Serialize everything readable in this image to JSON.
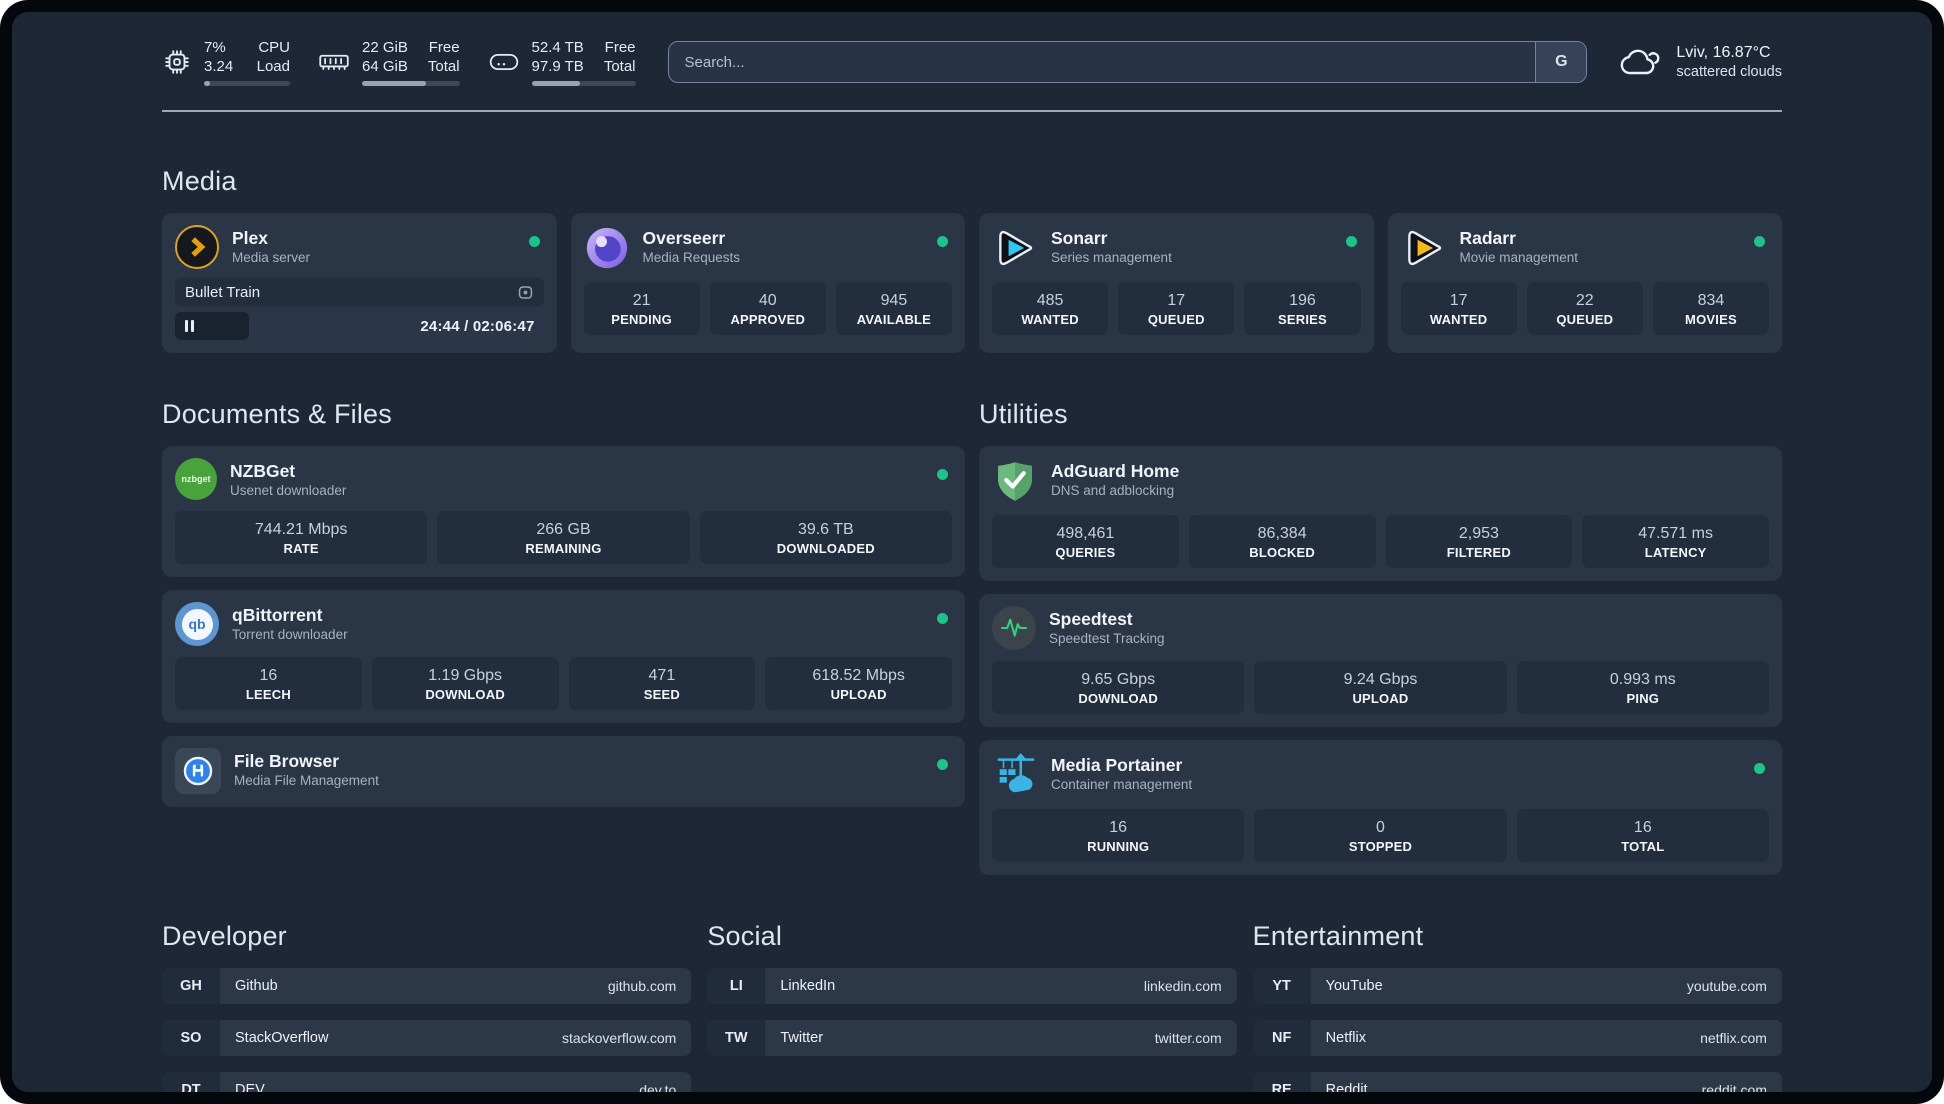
{
  "system": {
    "cpu": {
      "value_top": "7%",
      "value_bottom": "3.24",
      "label_top": "CPU",
      "label_bottom": "Load",
      "progress_pct": 7
    },
    "memory": {
      "value_top": "22 GiB",
      "value_bottom": "64 GiB",
      "label_top": "Free",
      "label_bottom": "Total",
      "progress_pct": 66
    },
    "storage": {
      "value_top": "52.4 TB",
      "value_bottom": "97.9 TB",
      "label_top": "Free",
      "label_bottom": "Total",
      "progress_pct": 47
    }
  },
  "search": {
    "placeholder": "Search...",
    "engine_label": "G"
  },
  "weather": {
    "location_temp": "Lviv, 16.87°C",
    "condition": "scattered clouds"
  },
  "media": {
    "heading": "Media",
    "plex": {
      "title": "Plex",
      "subtitle": "Media server",
      "now_playing": "Bullet Train",
      "time": "24:44 / 02:06:47",
      "progress_pct": 20
    },
    "overseerr": {
      "title": "Overseerr",
      "subtitle": "Media Requests",
      "stats": [
        {
          "value": "21",
          "label": "PENDING"
        },
        {
          "value": "40",
          "label": "APPROVED"
        },
        {
          "value": "945",
          "label": "AVAILABLE"
        }
      ]
    },
    "sonarr": {
      "title": "Sonarr",
      "subtitle": "Series management",
      "stats": [
        {
          "value": "485",
          "label": "WANTED"
        },
        {
          "value": "17",
          "label": "QUEUED"
        },
        {
          "value": "196",
          "label": "SERIES"
        }
      ]
    },
    "radarr": {
      "title": "Radarr",
      "subtitle": "Movie management",
      "stats": [
        {
          "value": "17",
          "label": "WANTED"
        },
        {
          "value": "22",
          "label": "QUEUED"
        },
        {
          "value": "834",
          "label": "MOVIES"
        }
      ]
    }
  },
  "documents": {
    "heading": "Documents & Files",
    "nzbget": {
      "title": "NZBGet",
      "subtitle": "Usenet downloader",
      "icon_text": "nzbget",
      "stats": [
        {
          "value": "744.21 Mbps",
          "label": "RATE"
        },
        {
          "value": "266 GB",
          "label": "REMAINING"
        },
        {
          "value": "39.6 TB",
          "label": "DOWNLOADED"
        }
      ]
    },
    "qbittorrent": {
      "title": "qBittorrent",
      "subtitle": "Torrent downloader",
      "icon_text": "qb",
      "stats": [
        {
          "value": "16",
          "label": "LEECH"
        },
        {
          "value": "1.19 Gbps",
          "label": "DOWNLOAD"
        },
        {
          "value": "471",
          "label": "SEED"
        },
        {
          "value": "618.52 Mbps",
          "label": "UPLOAD"
        }
      ]
    },
    "filebrowser": {
      "title": "File Browser",
      "subtitle": "Media File Management"
    }
  },
  "utilities": {
    "heading": "Utilities",
    "adguard": {
      "title": "AdGuard Home",
      "subtitle": "DNS and adblocking",
      "stats": [
        {
          "value": "498,461",
          "label": "QUERIES"
        },
        {
          "value": "86,384",
          "label": "BLOCKED"
        },
        {
          "value": "2,953",
          "label": "FILTERED"
        },
        {
          "value": "47.571 ms",
          "label": "LATENCY"
        }
      ]
    },
    "speedtest": {
      "title": "Speedtest",
      "subtitle": "Speedtest Tracking",
      "stats": [
        {
          "value": "9.65 Gbps",
          "label": "DOWNLOAD"
        },
        {
          "value": "9.24 Gbps",
          "label": "UPLOAD"
        },
        {
          "value": "0.993 ms",
          "label": "PING"
        }
      ]
    },
    "portainer": {
      "title": "Media Portainer",
      "subtitle": "Container management",
      "stats": [
        {
          "value": "16",
          "label": "RUNNING"
        },
        {
          "value": "0",
          "label": "STOPPED"
        },
        {
          "value": "16",
          "label": "TOTAL"
        }
      ]
    }
  },
  "bookmarks": {
    "developer": {
      "heading": "Developer",
      "links": [
        {
          "abbr": "GH",
          "name": "Github",
          "url": "github.com"
        },
        {
          "abbr": "SO",
          "name": "StackOverflow",
          "url": "stackoverflow.com"
        },
        {
          "abbr": "DT",
          "name": "DEV",
          "url": "dev.to"
        }
      ]
    },
    "social": {
      "heading": "Social",
      "links": [
        {
          "abbr": "LI",
          "name": "LinkedIn",
          "url": "linkedin.com"
        },
        {
          "abbr": "TW",
          "name": "Twitter",
          "url": "twitter.com"
        }
      ]
    },
    "entertainment": {
      "heading": "Entertainment",
      "links": [
        {
          "abbr": "YT",
          "name": "YouTube",
          "url": "youtube.com"
        },
        {
          "abbr": "NF",
          "name": "Netflix",
          "url": "netflix.com"
        },
        {
          "abbr": "RE",
          "name": "Reddit",
          "url": "reddit.com"
        }
      ]
    }
  },
  "colors": {
    "status_online": "#1ec28b",
    "plex_amber": "#e5a00d",
    "sonarr_cyan": "#35c5f2",
    "radarr_yellow": "#f5b81d",
    "adguard_green": "#67b279",
    "portainer_blue": "#3bb3e6",
    "speedtest_green": "#35d07f",
    "nzbget_green": "#48a33c",
    "qbittorrent_blue": "#5e97d0",
    "filebrowser_blue": "#2f82e8"
  },
  "icons": {
    "cpu": "cpu-chip",
    "memory": "ram-stick",
    "storage": "hard-drive",
    "weather": "scattered-clouds",
    "plex": "plex-chevron",
    "overseerr": "overseerr-eye",
    "sonarr": "play-triangle-cyan",
    "radarr": "play-triangle-yellow",
    "nzbget": "nzbget-circle",
    "qbittorrent": "qb-circle",
    "filebrowser": "floppy-circle",
    "adguard": "shield-check",
    "speedtest": "pulse-wave",
    "portainer": "container-crane",
    "now_playing": "screen",
    "pause": "pause-bars",
    "status": "online-dot"
  }
}
